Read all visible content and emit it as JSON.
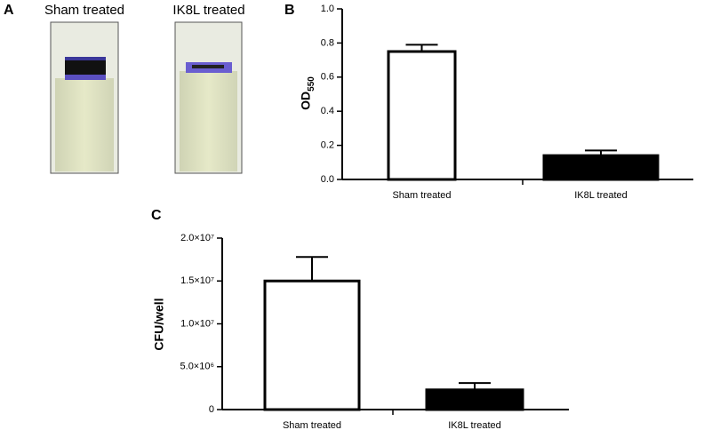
{
  "panel_a": {
    "letter": "A",
    "labels": [
      "Sham treated",
      "IK8L treated"
    ]
  },
  "chart_data": [
    {
      "type": "bar",
      "panel_label": "B",
      "y_label": "OD",
      "y_label_subscript": "550",
      "categories": [
        "Sham treated",
        "IK8L treated"
      ],
      "values": [
        0.75,
        0.14
      ],
      "errors": [
        0.04,
        0.03
      ],
      "colors": [
        "#ffffff",
        "#000000"
      ],
      "ylim": [
        0,
        1
      ],
      "yticks": [
        {
          "value": 0,
          "label": "0.0"
        },
        0.2,
        0.4,
        0.6,
        0.8,
        {
          "value": 1,
          "label": "1.0"
        }
      ]
    },
    {
      "type": "bar",
      "panel_label": "C",
      "y_label": "CFU/well",
      "categories": [
        "Sham treated",
        "IK8L treated"
      ],
      "values": [
        15000000,
        2300000
      ],
      "errors": [
        2800000,
        800000
      ],
      "colors": [
        "#ffffff",
        "#000000"
      ],
      "ylim": [
        0,
        20000000
      ],
      "yticks": [
        0,
        {
          "value": 5000000,
          "label": "5.0×10⁶"
        },
        {
          "value": 10000000,
          "label": "1.0×10⁷"
        },
        {
          "value": 15000000,
          "label": "1.5×10⁷"
        },
        {
          "value": 20000000,
          "label": "2.0×10⁷"
        }
      ]
    }
  ]
}
